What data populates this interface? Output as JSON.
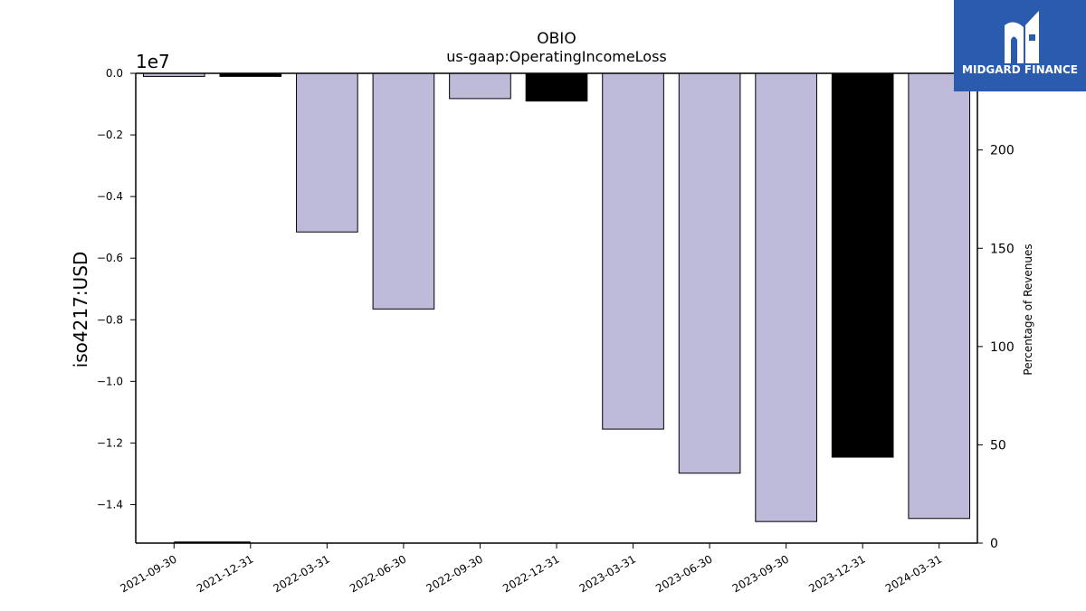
{
  "chart_data": {
    "type": "bar",
    "title": "OBIO",
    "subtitle": "us-gaap:OperatingIncomeLoss",
    "ylabel": "iso4217:USD",
    "y_offset_label": "1e7",
    "y2label": "Percentage of Revenues",
    "categories": [
      "2021-09-30",
      "2021-12-31",
      "2022-03-31",
      "2022-06-30",
      "2022-09-30",
      "2022-12-31",
      "2023-03-31",
      "2023-06-30",
      "2023-09-30",
      "2023-12-31",
      "2024-03-31"
    ],
    "values": [
      -100000,
      -100000,
      -5150000,
      -7650000,
      -820000,
      -900000,
      -11550000,
      -12980000,
      -14550000,
      -12460000,
      -14450000
    ],
    "bar_colors": [
      "#bebada",
      "#000000",
      "#bebada",
      "#bebada",
      "#bebada",
      "#000000",
      "#bebada",
      "#bebada",
      "#bebada",
      "#000000",
      "#bebada"
    ],
    "secondary": {
      "values": [
        0,
        0
      ],
      "categories": [
        "2021-09-30",
        "2021-12-31"
      ]
    },
    "ylim": [
      -15250000,
      0
    ],
    "yticks": [
      0,
      -2000000,
      -4000000,
      -6000000,
      -8000000,
      -10000000,
      -12000000,
      -14000000
    ],
    "ytick_labels": [
      "0.0",
      "−0.2",
      "−0.4",
      "−0.6",
      "−0.8",
      "−1.0",
      "−1.2",
      "−1.4"
    ],
    "y2lim": [
      0,
      239
    ],
    "y2ticks": [
      0,
      50,
      100,
      150,
      200
    ],
    "y2tick_labels": [
      "0",
      "50",
      "100",
      "150",
      "200"
    ]
  },
  "logo": {
    "text": "MIDGARD FINANCE",
    "bg": "#2b5bad"
  }
}
